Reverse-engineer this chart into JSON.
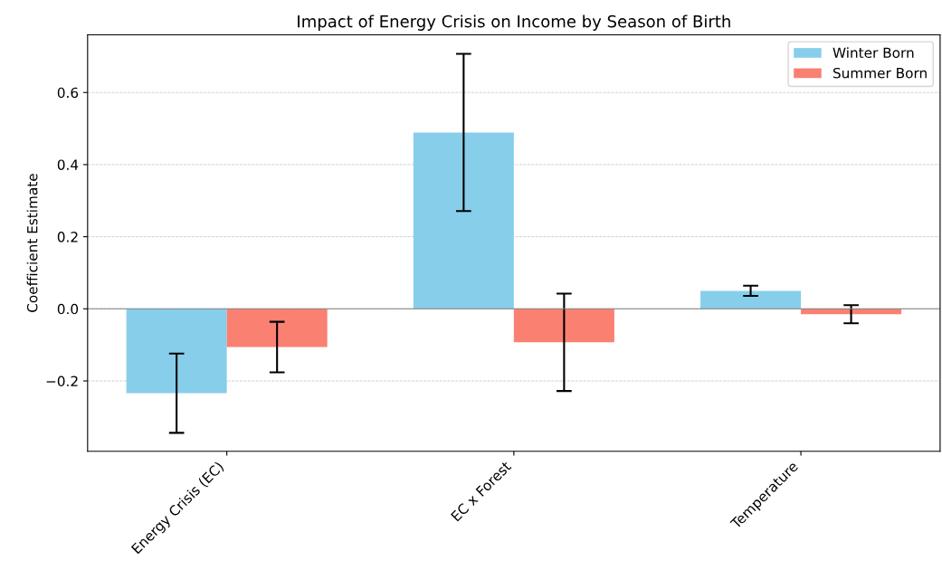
{
  "chart_data": {
    "type": "bar",
    "title": "Impact of Energy Crisis on Income by Season of Birth",
    "ylabel": "Coefficient Estimate",
    "categories": [
      "Energy Crisis (EC)",
      "EC x Forest",
      "Temperature"
    ],
    "series": [
      {
        "name": "Winter Born",
        "color": "#87ceeb",
        "values": [
          -0.234,
          0.489,
          0.05
        ],
        "errors": [
          0.11,
          0.218,
          0.014
        ]
      },
      {
        "name": "Summer Born",
        "color": "#fa8072",
        "values": [
          -0.106,
          -0.093,
          -0.015
        ],
        "errors": [
          0.07,
          0.135,
          0.025
        ]
      }
    ],
    "ylim": [
      -0.395,
      0.76
    ],
    "yticks": [
      {
        "value": -0.2,
        "label": "−0.2"
      },
      {
        "value": 0.0,
        "label": "0.0"
      },
      {
        "value": 0.2,
        "label": "0.2"
      },
      {
        "value": 0.4,
        "label": "0.4"
      },
      {
        "value": 0.6,
        "label": "0.6"
      }
    ],
    "ref_lines": [
      {
        "axis": "y",
        "value": 0,
        "color": "#808080",
        "line_style": "solid"
      }
    ],
    "grid": "y",
    "legend": "top right"
  }
}
